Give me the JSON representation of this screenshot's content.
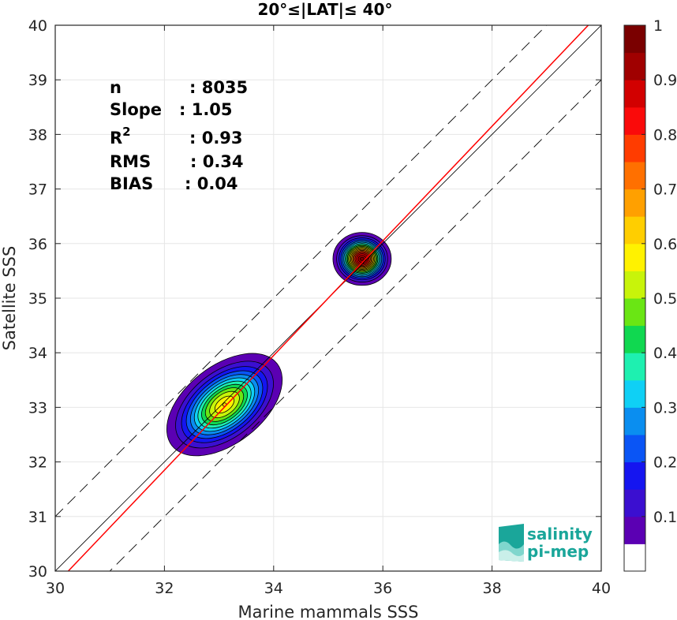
{
  "chart_data": {
    "type": "contour",
    "title": "20°≤|LAT|≤ 40°",
    "xlabel": "Marine mammals SSS",
    "ylabel": "Satellite SSS",
    "xlim": [
      30,
      40
    ],
    "ylim": [
      30,
      40
    ],
    "xticks": [
      30,
      32,
      34,
      36,
      38,
      40
    ],
    "yticks": [
      30,
      31,
      32,
      33,
      34,
      35,
      36,
      37,
      38,
      39,
      40
    ],
    "grid": true,
    "stats": [
      {
        "label": "n",
        "value": ": 8035"
      },
      {
        "label": "Slope",
        "value": ": 1.05"
      },
      {
        "label": "R",
        "sup": "2",
        "value": ": 0.93"
      },
      {
        "label": "RMS",
        "value": ": 0.34"
      },
      {
        "label": "BIAS",
        "value": ": 0.04"
      }
    ],
    "lines": {
      "identity": {
        "slope": 1,
        "intercept": 0
      },
      "fit": {
        "slope": 1.05,
        "intercept": -1.75
      },
      "bounds_offset": 1
    },
    "density_clusters": [
      {
        "center": [
          33.1,
          33.05
        ],
        "sx": 0.55,
        "sy": 0.32,
        "angle_deg": 38,
        "peak": 0.62
      },
      {
        "center": [
          35.62,
          35.72
        ],
        "sx": 0.22,
        "sy": 0.2,
        "angle_deg": 0,
        "peak": 1.0
      }
    ],
    "colorbar": {
      "range": [
        0,
        1
      ],
      "ticks": [
        0.1,
        0.2,
        0.3,
        0.4,
        0.5,
        0.6,
        0.7,
        0.8,
        0.9,
        1
      ],
      "tick_labels": [
        "0.1",
        "0.2",
        "0.3",
        "0.4",
        "0.5",
        "0.6",
        "0.7",
        "0.8",
        "0.9",
        "1"
      ],
      "colors": [
        "#ffffff",
        "#5b00b3",
        "#3b0fd0",
        "#1515f0",
        "#0a55f5",
        "#0a8ef0",
        "#0fd0f5",
        "#1ef0b0",
        "#10d850",
        "#6ae614",
        "#c8f40a",
        "#fff200",
        "#ffce00",
        "#ffa000",
        "#ff7000",
        "#ff3c00",
        "#fa0a0a",
        "#d20000",
        "#a00000",
        "#7a0000"
      ]
    }
  },
  "logo": {
    "line1": "salinity",
    "line2": "pi-mep"
  }
}
